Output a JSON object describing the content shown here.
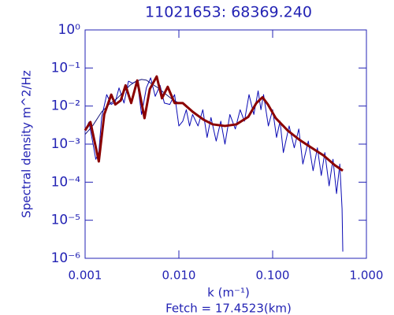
{
  "chart_data": {
    "type": "line",
    "title": "11021653: 68369.240",
    "xlabel": "k (m⁻¹)",
    "ylabel": "Spectral density m^2/Hz",
    "annotation": "Fetch = 17.4523(km)",
    "xscale": "log",
    "yscale": "log",
    "xlim": [
      0.001,
      1
    ],
    "ylim": [
      1e-06,
      1
    ],
    "xticks": [
      {
        "value": 0.001,
        "label": "0.001"
      },
      {
        "value": 0.01,
        "label": "0.010"
      },
      {
        "value": 0.1,
        "label": "0.100"
      },
      {
        "value": 1,
        "label": "1.000"
      }
    ],
    "yticks": [
      {
        "value": 1e-06,
        "label": "10⁻⁶"
      },
      {
        "value": 1e-05,
        "label": "10⁻⁵"
      },
      {
        "value": 0.0001,
        "label": "10⁻⁴"
      },
      {
        "value": 0.001,
        "label": "10⁻³"
      },
      {
        "value": 0.01,
        "label": "10⁻²"
      },
      {
        "value": 0.1,
        "label": "10⁻¹"
      },
      {
        "value": 1,
        "label": "10⁰"
      }
    ],
    "axis_color": "#2323b4",
    "series": [
      {
        "color": "#0a0ab4",
        "width": 1,
        "x": [
          0.001,
          0.0011,
          0.0012,
          0.0013,
          0.0014,
          0.0015,
          0.0017,
          0.0019,
          0.0021,
          0.0023,
          0.0026,
          0.0029,
          0.0032,
          0.0036,
          0.004,
          0.0045,
          0.005,
          0.0056,
          0.0063,
          0.007,
          0.008,
          0.009,
          0.01,
          0.011,
          0.012,
          0.013,
          0.014,
          0.016,
          0.018,
          0.02,
          0.022,
          0.025,
          0.028,
          0.031,
          0.035,
          0.04,
          0.045,
          0.05,
          0.056,
          0.063,
          0.07,
          0.075,
          0.08,
          0.09,
          0.1,
          0.11,
          0.12,
          0.13,
          0.15,
          0.17,
          0.19,
          0.21,
          0.24,
          0.27,
          0.3,
          0.33,
          0.36,
          0.4,
          0.44,
          0.48,
          0.52,
          0.55,
          0.56
        ],
        "values": [
          0.0023,
          0.0038,
          0.0012,
          0.0004,
          0.0006,
          0.005,
          0.02,
          0.011,
          0.013,
          0.03,
          0.012,
          0.045,
          0.04,
          0.045,
          0.006,
          0.03,
          0.055,
          0.018,
          0.035,
          0.012,
          0.011,
          0.02,
          0.003,
          0.004,
          0.008,
          0.003,
          0.006,
          0.003,
          0.008,
          0.0015,
          0.005,
          0.0012,
          0.004,
          0.001,
          0.006,
          0.0025,
          0.008,
          0.004,
          0.02,
          0.006,
          0.025,
          0.008,
          0.02,
          0.003,
          0.008,
          0.0015,
          0.004,
          0.0006,
          0.003,
          0.0008,
          0.0025,
          0.0003,
          0.0012,
          0.0002,
          0.0008,
          0.00015,
          0.0006,
          8e-05,
          0.0004,
          5e-05,
          0.0003,
          2e-05,
          1.5e-06
        ]
      },
      {
        "color": "#14147a",
        "width": 1,
        "x": [
          0.001,
          0.0012,
          0.0015,
          0.0018,
          0.0022,
          0.0026,
          0.003,
          0.0035,
          0.004,
          0.0045,
          0.005,
          0.006,
          0.007,
          0.0085,
          0.01
        ],
        "values": [
          0.0018,
          0.003,
          0.007,
          0.011,
          0.016,
          0.024,
          0.035,
          0.045,
          0.05,
          0.048,
          0.04,
          0.03,
          0.022,
          0.015,
          0.012
        ]
      },
      {
        "color": "#8b0000",
        "width": 3,
        "x": [
          0.001,
          0.00114,
          0.0014,
          0.0016,
          0.0019,
          0.0021,
          0.0024,
          0.0027,
          0.0031,
          0.0036,
          0.0043,
          0.0049,
          0.0058,
          0.0066,
          0.0076,
          0.009,
          0.011,
          0.0141,
          0.0183,
          0.023,
          0.031,
          0.041,
          0.055,
          0.067,
          0.078,
          0.089,
          0.108,
          0.144,
          0.193,
          0.26,
          0.35,
          0.46,
          0.56
        ],
        "values": [
          0.0023,
          0.0038,
          0.00035,
          0.006,
          0.02,
          0.011,
          0.014,
          0.035,
          0.012,
          0.047,
          0.0048,
          0.028,
          0.06,
          0.016,
          0.032,
          0.012,
          0.012,
          0.007,
          0.0044,
          0.0033,
          0.003,
          0.0033,
          0.0052,
          0.012,
          0.017,
          0.011,
          0.0048,
          0.0023,
          0.0013,
          0.0008,
          0.0005,
          0.00028,
          0.0002
        ]
      }
    ]
  }
}
